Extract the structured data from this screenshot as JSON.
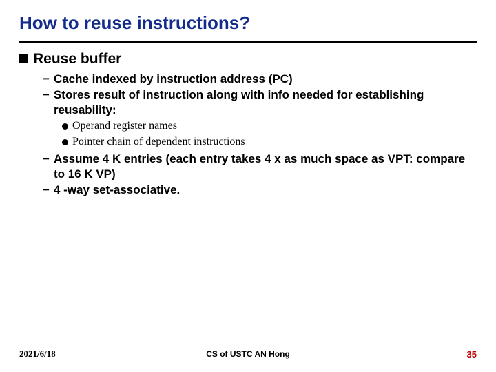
{
  "title": "How to reuse instructions?",
  "colors": {
    "title": "#142d8c",
    "rule": "#000000",
    "pagenum": "#c00000",
    "background": "#ffffff"
  },
  "bullets": {
    "l1": {
      "text": "Reuse buffer"
    },
    "l2_1": {
      "text": "Cache indexed by instruction address (PC)"
    },
    "l2_2": {
      "text": "Stores result of instruction along with info needed for establishing reusability:"
    },
    "l3_1": {
      "text": "Operand register names"
    },
    "l3_2": {
      "text": "Pointer chain of dependent instructions"
    },
    "l2_3": {
      "text": "Assume 4 K entries (each entry takes 4 x as much space as VPT: compare to 16 K VP)"
    },
    "l2_4": {
      "text": "4 -way set-associative."
    }
  },
  "footer": {
    "date": "2021/6/18",
    "center": "CS of USTC AN Hong",
    "pagenum": "35"
  }
}
